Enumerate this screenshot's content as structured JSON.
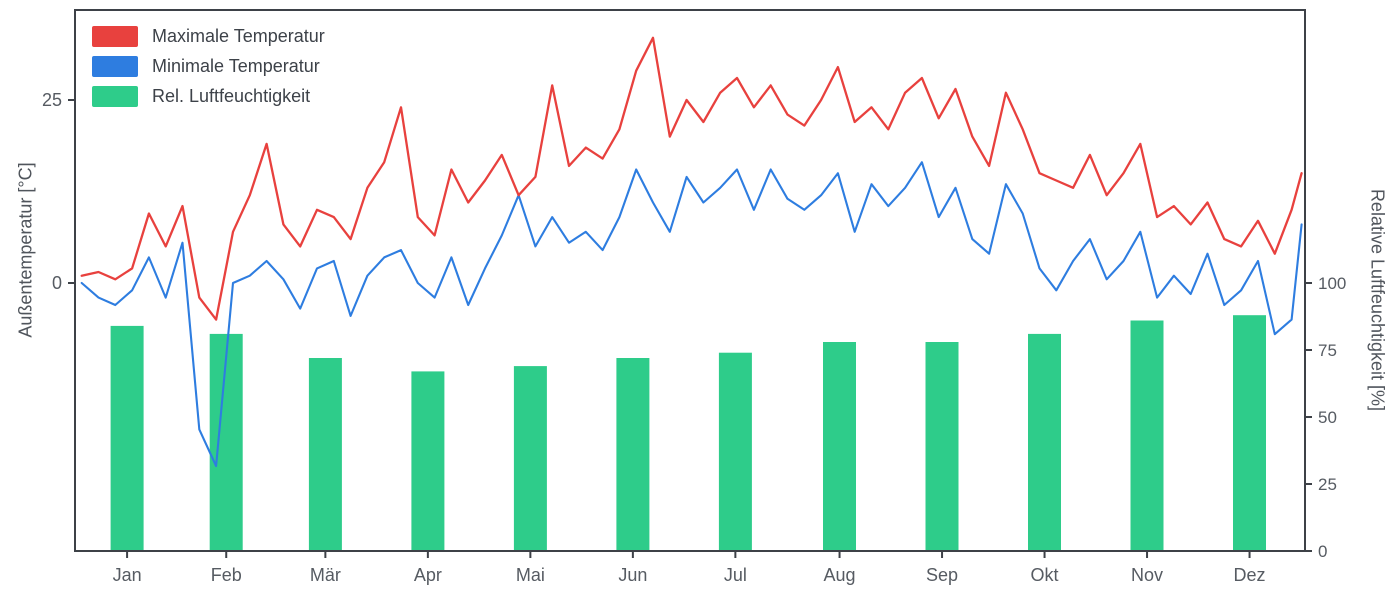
{
  "chart_data": {
    "type": "line+bar",
    "title": "",
    "left_axis": {
      "label": "Außentemperatur [°C]",
      "ticks": [
        0,
        25
      ],
      "range": [
        -36,
        37
      ]
    },
    "right_axis": {
      "label": "Relative Luftfeuchtigkeit [%]",
      "ticks": [
        0,
        25,
        50,
        75,
        100
      ],
      "range": [
        0,
        200
      ]
    },
    "x_axis": {
      "tick_labels": [
        "Jan",
        "Feb",
        "Mär",
        "Apr",
        "Mai",
        "Jun",
        "Jul",
        "Aug",
        "Sep",
        "Okt",
        "Nov",
        "Dez"
      ]
    },
    "legend": [
      {
        "label": "Maximale Temperatur",
        "color": "#e8413e",
        "type": "line"
      },
      {
        "label": "Minimale Temperatur",
        "color": "#2e7de0",
        "type": "line"
      },
      {
        "label": "Rel. Luftfeuchtigkeit",
        "color": "#2ecc8a",
        "type": "bar"
      }
    ],
    "x_days": [
      2,
      7,
      12,
      17,
      22,
      27,
      32,
      37,
      42,
      47,
      52,
      57,
      62,
      67,
      72,
      77,
      82,
      87,
      92,
      97,
      102,
      107,
      112,
      117,
      122,
      127,
      132,
      137,
      142,
      147,
      152,
      157,
      162,
      167,
      172,
      177,
      182,
      187,
      192,
      197,
      202,
      207,
      212,
      217,
      222,
      227,
      232,
      237,
      242,
      247,
      252,
      257,
      262,
      267,
      272,
      277,
      282,
      287,
      292,
      297,
      302,
      307,
      312,
      317,
      322,
      327,
      332,
      337,
      342,
      347,
      352,
      357,
      362,
      365
    ],
    "series": {
      "max_temp": {
        "name": "Maximale Temperatur",
        "unit": "°C",
        "color": "#e8413e",
        "values": [
          1,
          1.5,
          0.5,
          2,
          9.5,
          5,
          10.5,
          -2,
          -5,
          7,
          12,
          19,
          8,
          5,
          10,
          9,
          6,
          13,
          16.5,
          24,
          9,
          6.5,
          15.5,
          11,
          14,
          17.5,
          12,
          14.5,
          27,
          16,
          18.5,
          17,
          21,
          29,
          33.5,
          20,
          25,
          22,
          26,
          28,
          24,
          27,
          23,
          21.5,
          25,
          29.5,
          22,
          24,
          21,
          26,
          28,
          22.5,
          26.5,
          20,
          16,
          26,
          21,
          15,
          14,
          13,
          17.5,
          12,
          15,
          19,
          9,
          10.5,
          8,
          11,
          6,
          5,
          8.5,
          4,
          10,
          15
        ]
      },
      "min_temp": {
        "name": "Minimale Temperatur",
        "unit": "°C",
        "color": "#2e7de0",
        "values": [
          0,
          -2,
          -3,
          -1,
          3.5,
          -2,
          5.5,
          -20,
          -25,
          0,
          1,
          3,
          0.5,
          -3.5,
          2,
          3,
          -4.5,
          1,
          3.5,
          4.5,
          0,
          -2,
          3.5,
          -3,
          2,
          6.5,
          12,
          5,
          9,
          5.5,
          7,
          4.5,
          9,
          15.5,
          11,
          7,
          14.5,
          11,
          13,
          15.5,
          10,
          15.5,
          11.5,
          10,
          12,
          15,
          7,
          13.5,
          10.5,
          13,
          16.5,
          9,
          13,
          6,
          4,
          13.5,
          9.5,
          2,
          -1,
          3,
          6,
          0.5,
          3,
          7,
          -2,
          1,
          -1.5,
          4,
          -3,
          -1,
          3,
          -7,
          -5,
          8
        ]
      },
      "humidity": {
        "name": "Rel. Luftfeuchtigkeit",
        "unit": "%",
        "color": "#2ecc8a",
        "categories": [
          "Jan",
          "Feb",
          "Mär",
          "Apr",
          "Mai",
          "Jun",
          "Jul",
          "Aug",
          "Sep",
          "Okt",
          "Nov",
          "Dez"
        ],
        "values": [
          84,
          81,
          72,
          67,
          69,
          72,
          74,
          78,
          78,
          81,
          86,
          88
        ]
      }
    }
  }
}
